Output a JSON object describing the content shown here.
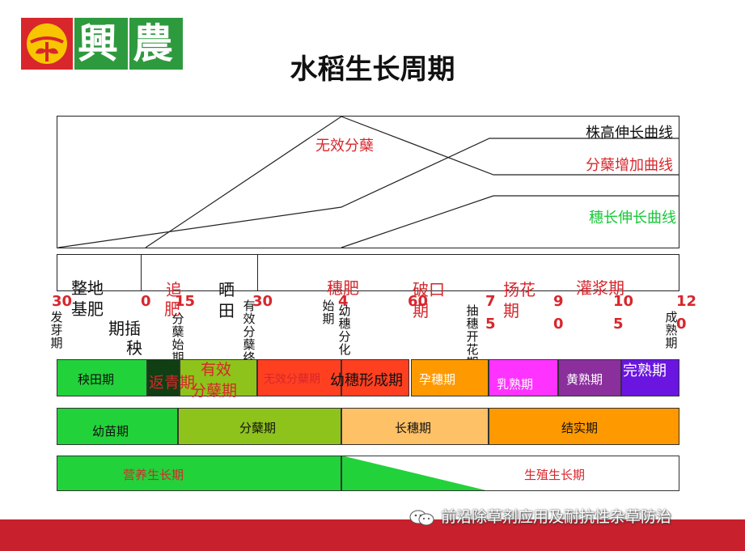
{
  "header": {
    "logo_text": [
      "興",
      "農"
    ],
    "title": "水稻生长周期"
  },
  "curves": {
    "plant_height": "株高伸长曲线",
    "tiller_increase": "分蘖增加曲线",
    "ineffective_tiller": "无效分蘖",
    "panicle_length": "穗长伸长曲线"
  },
  "operations": {
    "land_prep_line1": "整地",
    "land_prep_line2": "基肥",
    "topdress_line1": "追",
    "topdress_line2": "肥",
    "drain_line1": "晒",
    "drain_line2": "田",
    "panicle_fert": "穗肥",
    "panicle_break_line1": "破口",
    "panicle_break_line2": "期",
    "flowering_line1": "扬花",
    "flowering_line2": "期",
    "filling": "灌浆期",
    "transplant_line1": "期插",
    "transplant_line2": "秧"
  },
  "day_numbers": [
    "30",
    "0",
    "15",
    "30",
    "4",
    "60",
    "7",
    "5",
    "9",
    "0",
    "10",
    "5",
    "12",
    "0"
  ],
  "stage_markers": {
    "germination": "发芽期",
    "tillering_start": "分蘖始期",
    "effective_tiller_end": "有效分蘖终止期",
    "young_panicle_start": "始期",
    "young_panicle_diff": "幼穗分化",
    "heading_flowering": "抽穗开花期",
    "maturity": "成熟期"
  },
  "stage_band": {
    "seedbed": "秧田期",
    "recovery": "返青期",
    "effective_tiller_line1": "有效",
    "effective_tiller_line2": "分蘖期",
    "ineffective_tiller": "无效分蘖期",
    "panicle_formation": "幼穗形成期",
    "booting": "孕穗期",
    "milk": "乳熟期",
    "yellow": "黄熟期",
    "full": "完熟期"
  },
  "growth_band": {
    "seedling": "幼苗期",
    "tillering": "分蘖期",
    "panicle_elongation": "长穗期",
    "fruiting": "结实期"
  },
  "phase_band": {
    "vegetative": "营养生长期",
    "reproductive": "生殖生长期"
  },
  "watermark": "前沿除草剂应用及耐抗性杂草防治",
  "colors": {
    "red": "#d8262c",
    "green_logo": "#2e9a3e",
    "stage_green": "#22d23a",
    "stage_olive": "#8ec31b",
    "stage_orange": "#ff9900",
    "stage_peach": "#ffc166",
    "stage_magenta": "#ff33ff",
    "stage_purple": "#8a2f9c",
    "stage_violet": "#6a16e0",
    "stage_darkgreen": "#0f3f12",
    "stage_redorange": "#ff4020"
  }
}
